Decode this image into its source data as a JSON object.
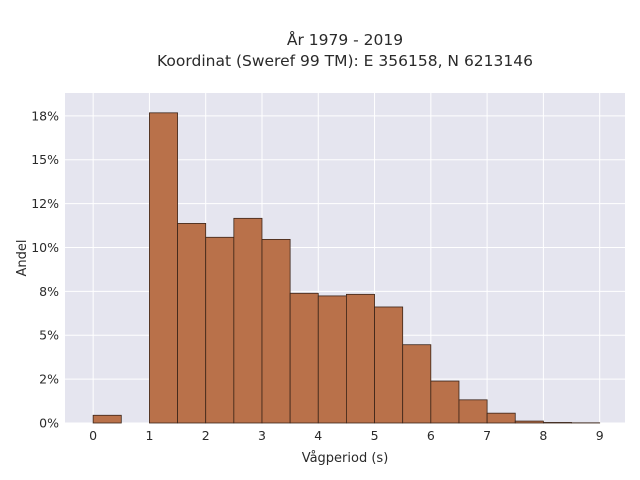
{
  "chart_data": {
    "type": "bar",
    "title_lines": [
      "År 1979 - 2019",
      "Koordinat (Sweref 99 TM): E 356158, N 6213146"
    ],
    "xlabel": "Vågperiod (s)",
    "ylabel": "Andel",
    "xlim": [
      -0.5,
      9.45
    ],
    "ylim": [
      0,
      0.188
    ],
    "x_ticks": [
      0,
      1,
      2,
      3,
      4,
      5,
      6,
      7,
      8,
      9
    ],
    "y_ticks": [
      {
        "value": 0,
        "label": "0%"
      },
      {
        "value": 0.025,
        "label": "2%"
      },
      {
        "value": 0.05,
        "label": "5%"
      },
      {
        "value": 0.075,
        "label": "8%"
      },
      {
        "value": 0.1,
        "label": "10%"
      },
      {
        "value": 0.125,
        "label": "12%"
      },
      {
        "value": 0.15,
        "label": "15%"
      },
      {
        "value": 0.175,
        "label": "18%"
      }
    ],
    "bin_edges": [
      0,
      0.5,
      1.0,
      1.5,
      2.0,
      2.5,
      3.0,
      3.5,
      4.0,
      4.5,
      5.0,
      5.5,
      6.0,
      6.5,
      7.0,
      7.5,
      8.0,
      8.5,
      9.0
    ],
    "values": [
      0.0044,
      0.0,
      0.1767,
      0.1137,
      0.1058,
      0.1166,
      0.1046,
      0.0739,
      0.0724,
      0.0733,
      0.0661,
      0.0446,
      0.0239,
      0.0132,
      0.0056,
      0.0011,
      0.0003,
      0.0001
    ],
    "grid": true,
    "colors": {
      "bar_fill": "#b9714a",
      "bar_edge": "#3b2418",
      "plot_bg": "#e5e5ef",
      "grid": "#ffffff"
    }
  }
}
